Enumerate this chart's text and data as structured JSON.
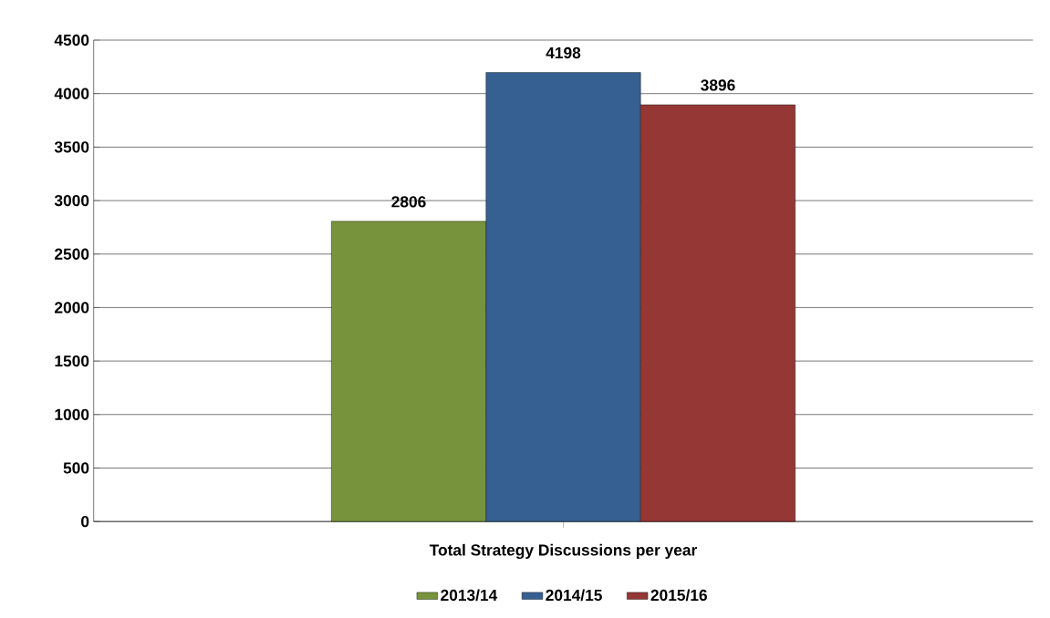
{
  "chart_data": {
    "type": "bar",
    "categories": [
      "Total Strategy Discussions per year"
    ],
    "series": [
      {
        "name": "2013/14",
        "color": "#77933c",
        "values": [
          2806
        ]
      },
      {
        "name": "2014/15",
        "color": "#376092",
        "values": [
          4198
        ]
      },
      {
        "name": "2015/16",
        "color": "#953735",
        "values": [
          3896
        ]
      }
    ],
    "ylim": [
      0,
      4500
    ],
    "yticks": [
      0,
      500,
      1000,
      1500,
      2000,
      2500,
      3000,
      3500,
      4000,
      4500
    ],
    "grid": "y",
    "legend": "bottom",
    "data_labels": true
  }
}
